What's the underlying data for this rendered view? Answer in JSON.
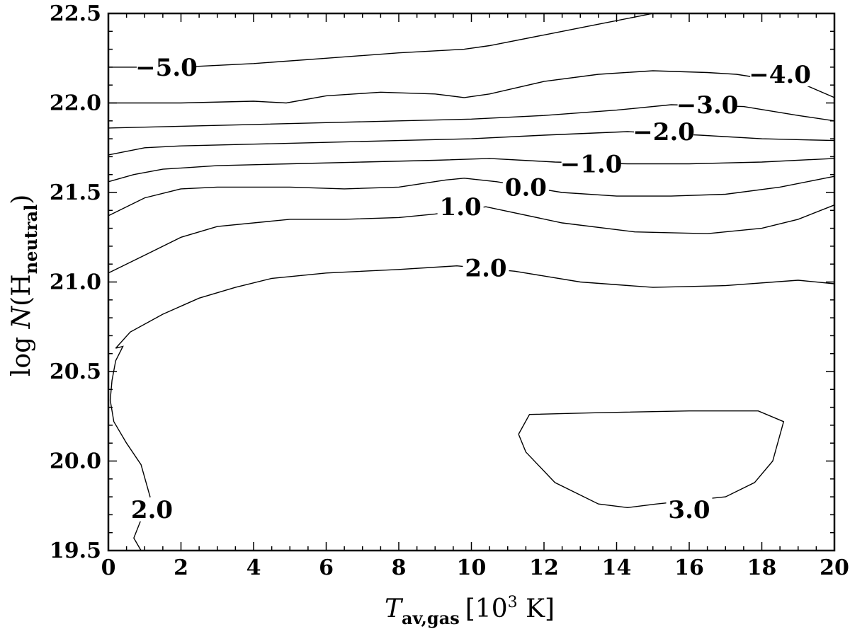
{
  "chart_data": {
    "type": "contour",
    "xlim": [
      0,
      20
    ],
    "ylim": [
      19.5,
      22.5
    ],
    "x_ticks": [
      0,
      2,
      4,
      6,
      8,
      10,
      12,
      14,
      16,
      18,
      20
    ],
    "y_ticks": [
      19.5,
      20.0,
      20.5,
      21.0,
      21.5,
      22.0,
      22.5
    ],
    "x_tick_labels": [
      "0",
      "2",
      "4",
      "6",
      "8",
      "10",
      "12",
      "14",
      "16",
      "18",
      "20"
    ],
    "y_tick_labels": [
      "19.5",
      "20.0",
      "20.5",
      "21.0",
      "21.5",
      "22.0",
      "22.5"
    ],
    "xlabel": {
      "main": "T",
      "sub": "av,gas",
      "rest": "[10",
      "sup": "3",
      "unit": " K]"
    },
    "ylabel": {
      "main": "log ",
      "italic": "N",
      "open": "(H",
      "sub": "neutral",
      "close": ")"
    },
    "contours": [
      {
        "level": "-5.0",
        "label": "−5.0",
        "label_at": [
          1.6,
          22.2
        ],
        "points": [
          [
            0,
            22.2
          ],
          [
            2,
            22.2
          ],
          [
            4,
            22.22
          ],
          [
            6,
            22.25
          ],
          [
            8,
            22.28
          ],
          [
            9.8,
            22.3
          ],
          [
            10.5,
            22.32
          ],
          [
            12,
            22.38
          ],
          [
            13.5,
            22.44
          ],
          [
            15,
            22.5
          ]
        ]
      },
      {
        "level": "-4.0",
        "label": "−4.0",
        "label_at": [
          18.5,
          22.16
        ],
        "points": [
          [
            0,
            22.0
          ],
          [
            2,
            22.0
          ],
          [
            4,
            22.01
          ],
          [
            4.9,
            22.0
          ],
          [
            6,
            22.04
          ],
          [
            7.5,
            22.06
          ],
          [
            9,
            22.05
          ],
          [
            9.8,
            22.03
          ],
          [
            10.5,
            22.05
          ],
          [
            12,
            22.12
          ],
          [
            13.5,
            22.16
          ],
          [
            15,
            22.18
          ],
          [
            16.5,
            22.17
          ],
          [
            17.3,
            22.16
          ],
          [
            19.2,
            22.1
          ],
          [
            20,
            22.03
          ]
        ]
      },
      {
        "level": "-3.0",
        "label": "−3.0",
        "label_at": [
          16.5,
          21.99
        ],
        "points": [
          [
            0,
            21.86
          ],
          [
            2,
            21.87
          ],
          [
            4,
            21.88
          ],
          [
            6,
            21.89
          ],
          [
            8,
            21.9
          ],
          [
            10,
            21.91
          ],
          [
            12,
            21.93
          ],
          [
            14,
            21.96
          ],
          [
            15.5,
            21.99
          ],
          [
            17.5,
            21.98
          ],
          [
            19,
            21.93
          ],
          [
            20,
            21.9
          ]
        ]
      },
      {
        "level": "-2.0",
        "label": "−2.0",
        "label_at": [
          15.3,
          21.84
        ],
        "points": [
          [
            0,
            21.71
          ],
          [
            1,
            21.75
          ],
          [
            2,
            21.76
          ],
          [
            4,
            21.77
          ],
          [
            6,
            21.78
          ],
          [
            8,
            21.79
          ],
          [
            10,
            21.8
          ],
          [
            12,
            21.82
          ],
          [
            14.3,
            21.84
          ],
          [
            16.3,
            21.82
          ],
          [
            18,
            21.8
          ],
          [
            20,
            21.79
          ]
        ]
      },
      {
        "level": "-1.0",
        "label": "−1.0",
        "label_at": [
          13.3,
          21.66
        ],
        "points": [
          [
            0,
            21.56
          ],
          [
            0.7,
            21.6
          ],
          [
            1.5,
            21.63
          ],
          [
            3,
            21.65
          ],
          [
            5,
            21.66
          ],
          [
            7,
            21.67
          ],
          [
            9,
            21.68
          ],
          [
            10.5,
            21.69
          ],
          [
            12.3,
            21.67
          ],
          [
            14.3,
            21.66
          ],
          [
            16,
            21.66
          ],
          [
            18,
            21.67
          ],
          [
            20,
            21.69
          ]
        ]
      },
      {
        "level": "0.0",
        "label": "0.0",
        "label_at": [
          11.5,
          21.53
        ],
        "points": [
          [
            0,
            21.37
          ],
          [
            1,
            21.47
          ],
          [
            2,
            21.52
          ],
          [
            3,
            21.53
          ],
          [
            5,
            21.53
          ],
          [
            6.5,
            21.52
          ],
          [
            8,
            21.53
          ],
          [
            9.3,
            21.57
          ],
          [
            9.8,
            21.58
          ],
          [
            10.7,
            21.56
          ],
          [
            12.5,
            21.5
          ],
          [
            14,
            21.48
          ],
          [
            15.5,
            21.48
          ],
          [
            17,
            21.49
          ],
          [
            18.5,
            21.53
          ],
          [
            20,
            21.59
          ]
        ]
      },
      {
        "level": "1.0",
        "label": "1.0",
        "label_at": [
          9.7,
          21.42
        ],
        "points": [
          [
            0,
            21.05
          ],
          [
            1,
            21.15
          ],
          [
            2,
            21.25
          ],
          [
            3,
            21.31
          ],
          [
            5,
            21.35
          ],
          [
            6.5,
            21.35
          ],
          [
            8,
            21.36
          ],
          [
            9,
            21.38
          ],
          [
            10.4,
            21.42
          ],
          [
            12.5,
            21.33
          ],
          [
            14.5,
            21.28
          ],
          [
            16.5,
            21.27
          ],
          [
            18,
            21.3
          ],
          [
            19,
            21.35
          ],
          [
            20,
            21.43
          ]
        ]
      },
      {
        "level": "2.0",
        "label": "2.0",
        "label_at": [
          10.4,
          21.08
        ],
        "points": [
          [
            0.2,
            20.63
          ],
          [
            0.6,
            20.72
          ],
          [
            1.5,
            20.82
          ],
          [
            2.5,
            20.91
          ],
          [
            3.5,
            20.97
          ],
          [
            4.5,
            21.02
          ],
          [
            6,
            21.05
          ],
          [
            8,
            21.07
          ],
          [
            9.6,
            21.09
          ],
          [
            11.2,
            21.06
          ],
          [
            13,
            21.0
          ],
          [
            15,
            20.97
          ],
          [
            17,
            20.98
          ],
          [
            19,
            21.01
          ],
          [
            20,
            20.99
          ]
        ]
      },
      {
        "level": "2.0",
        "label": "2.0",
        "label_at": [
          1.2,
          19.73
        ],
        "points": [
          [
            0.9,
            19.5
          ],
          [
            0.7,
            19.57
          ],
          [
            1.15,
            19.8
          ],
          [
            0.9,
            19.98
          ],
          [
            0.5,
            20.1
          ],
          [
            0.15,
            20.22
          ],
          [
            0.05,
            20.34
          ],
          [
            0.1,
            20.45
          ],
          [
            0.2,
            20.56
          ],
          [
            0.4,
            20.64
          ],
          [
            0.2,
            20.63
          ]
        ]
      },
      {
        "level": "3.0",
        "label": "3.0",
        "label_at": [
          16.0,
          19.73
        ],
        "points": [
          [
            11.3,
            20.15
          ],
          [
            11.6,
            20.26
          ],
          [
            13.5,
            20.27
          ],
          [
            16,
            20.28
          ],
          [
            17.9,
            20.28
          ],
          [
            18.6,
            20.22
          ],
          [
            18.3,
            20.0
          ],
          [
            17.8,
            19.88
          ],
          [
            17.0,
            19.8
          ],
          [
            15.1,
            19.76
          ],
          [
            14.3,
            19.74
          ],
          [
            13.5,
            19.76
          ],
          [
            12.3,
            19.88
          ],
          [
            11.5,
            20.05
          ],
          [
            11.3,
            20.15
          ]
        ]
      }
    ]
  }
}
